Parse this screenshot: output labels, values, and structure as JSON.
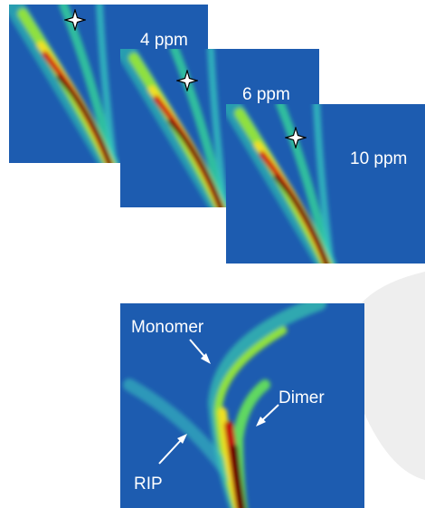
{
  "panels": [
    {
      "label": "4 ppm"
    },
    {
      "label": "6 ppm"
    },
    {
      "label": "10 ppm"
    }
  ],
  "annotations": {
    "monomer": "Monomer",
    "dimer": "Dimer",
    "rip": "RIP"
  }
}
